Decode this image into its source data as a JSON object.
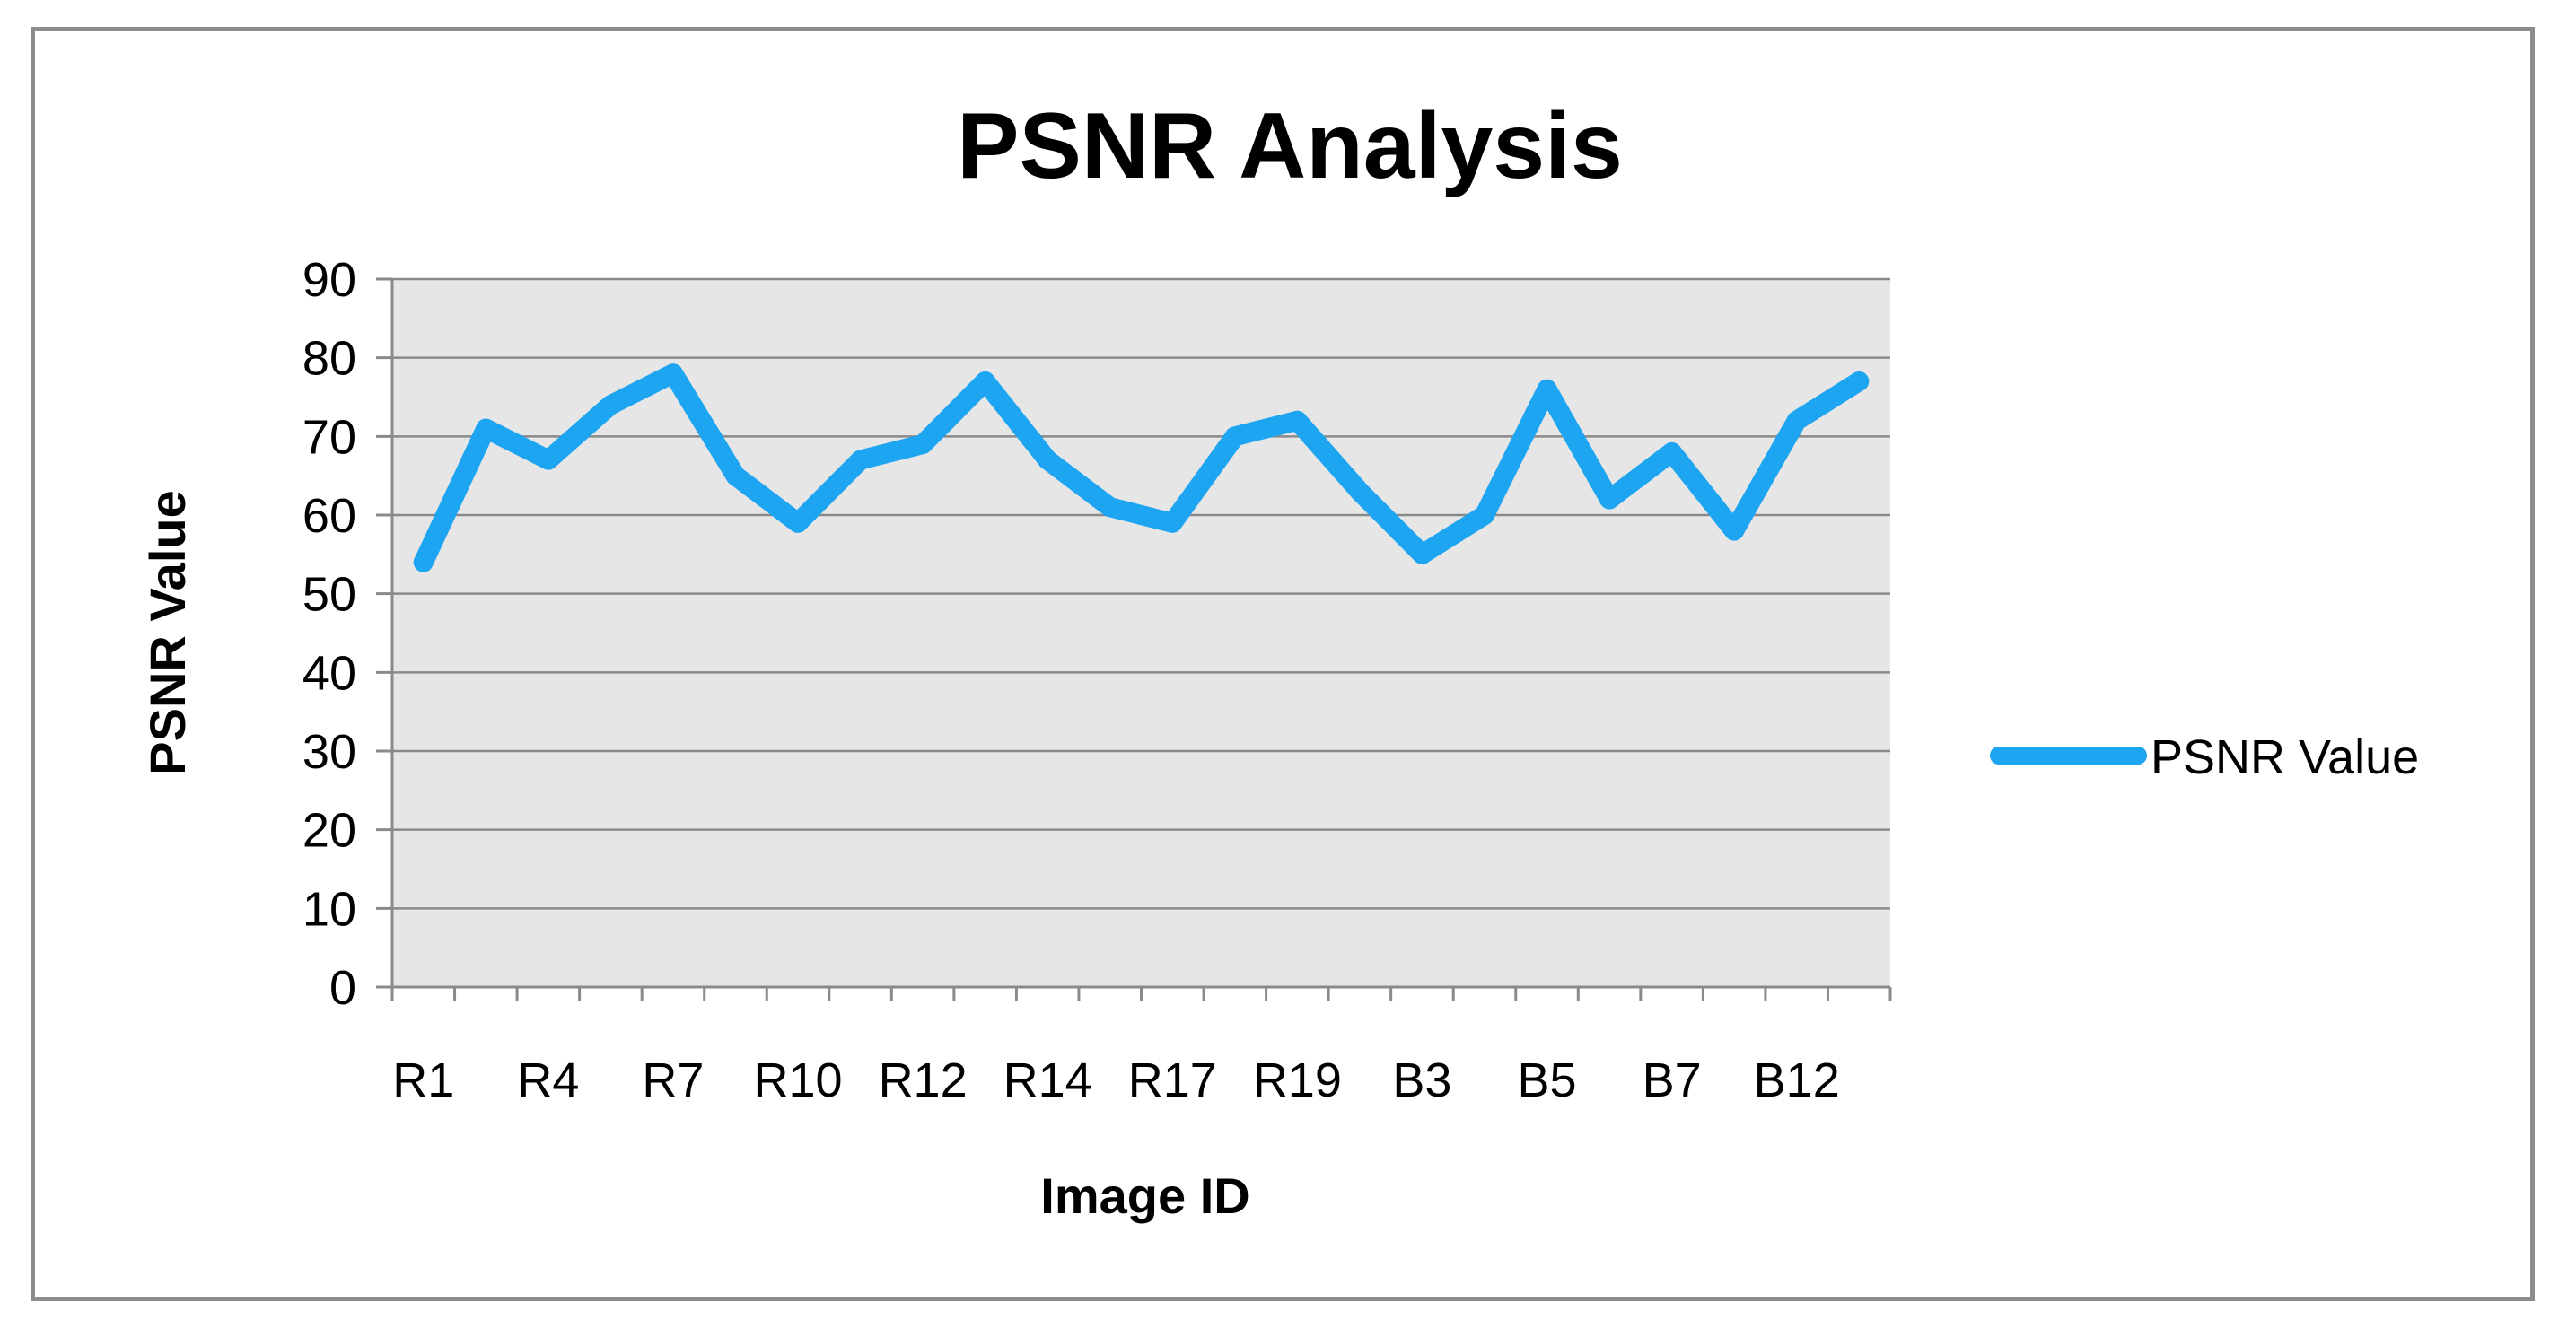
{
  "chart_data": {
    "type": "line",
    "title": "PSNR Analysis",
    "xlabel": "Image ID",
    "ylabel": "PSNR Value",
    "ylim": [
      0,
      90
    ],
    "yticks": [
      0,
      10,
      20,
      30,
      40,
      50,
      60,
      70,
      80,
      90
    ],
    "grid": true,
    "legend_position": "right",
    "plot_background": "#e6e6e6",
    "grid_color": "#8a8a8a",
    "line_color": "#1ea5f2",
    "x_tick_labels": [
      "R1",
      "R4",
      "R7",
      "R10",
      "R12",
      "R14",
      "R17",
      "R19",
      "B3",
      "B5",
      "B7",
      "B12"
    ],
    "x_tick_label_every": 2,
    "point_count": 24,
    "series": [
      {
        "name": "PSNR Value",
        "values": [
          54,
          71,
          67,
          74,
          78,
          65,
          59,
          67,
          69,
          77,
          67,
          61,
          59,
          70,
          72,
          63,
          55,
          60,
          76,
          62,
          68,
          58,
          72,
          77
        ]
      }
    ]
  }
}
